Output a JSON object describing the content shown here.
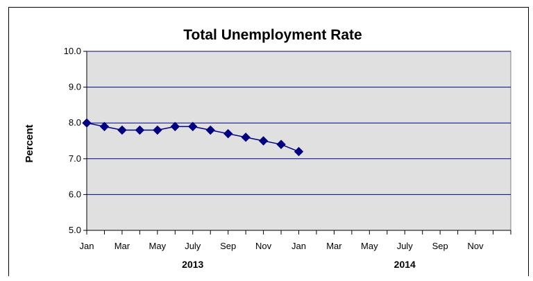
{
  "chart_data": {
    "type": "line",
    "title": "Total Unemployment Rate",
    "xlabel": "",
    "ylabel": "Percent",
    "ylim": [
      5.0,
      10.0
    ],
    "ytick_labels": [
      "5.0",
      "6.0",
      "7.0",
      "8.0",
      "9.0",
      "10.0"
    ],
    "grid": true,
    "months": [
      "Jan 2013",
      "Feb 2013",
      "Mar 2013",
      "Apr 2013",
      "May 2013",
      "Jun 2013",
      "Jul 2013",
      "Aug 2013",
      "Sep 2013",
      "Oct 2013",
      "Nov 2013",
      "Dec 2013",
      "Jan 2014",
      "Feb 2014",
      "Mar 2014",
      "Apr 2014",
      "May 2014",
      "Jun 2014",
      "Jul 2014",
      "Aug 2014",
      "Sep 2014",
      "Oct 2014",
      "Nov 2014",
      "Dec 2014"
    ],
    "xtick_labels": [
      "Jan",
      "",
      "Mar",
      "",
      "May",
      "",
      "July",
      "",
      "Sep",
      "",
      "Nov",
      "",
      "Jan",
      "",
      "Mar",
      "",
      "May",
      "",
      "July",
      "",
      "Sep",
      "",
      "Nov",
      ""
    ],
    "year_labels": [
      "2013",
      "2014"
    ],
    "series": [
      {
        "values": [
          8.0,
          7.9,
          7.8,
          7.8,
          7.8,
          7.9,
          7.9,
          7.8,
          7.7,
          7.6,
          7.5,
          7.4,
          7.2
        ],
        "color": "#000080"
      }
    ],
    "colors": {
      "plot_background": "#e0e0e0",
      "gridline": "#000080",
      "line": "#000080"
    }
  }
}
